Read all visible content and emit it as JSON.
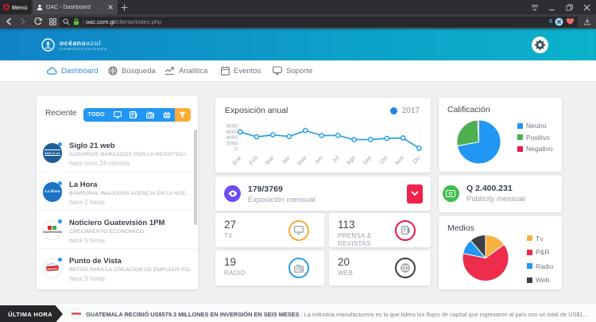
{
  "browser": {
    "menu_label": "Menú",
    "tab_title": "OAC - Dashboard",
    "new_tab": "+",
    "url_domain": "oac.com.gt",
    "url_path": "/cliente/index.php",
    "adblock_count": "0"
  },
  "header": {
    "brand_primary": "océano",
    "brand_secondary": "azul",
    "brand_sub": "COMUNICACIONES"
  },
  "nav": {
    "items": [
      {
        "label": "Dashboard",
        "active": true
      },
      {
        "label": "Búsqueda",
        "active": false
      },
      {
        "label": "Analítica",
        "active": false
      },
      {
        "label": "Eventos",
        "active": false
      },
      {
        "label": "Soporte",
        "active": false
      }
    ]
  },
  "recent": {
    "title": "Reciente",
    "filter_all_label": "TODO",
    "items": [
      {
        "source": "Siglo 21 web",
        "headline": "AUGURIOS MARCADOS POR LA INCERTIDU..",
        "time": "hace unos 24 minutos",
        "logo": "siglo21"
      },
      {
        "source": "La Hora",
        "headline": "BANRURAL INAUGURA AGENCIA EN LA NUE..",
        "time": "hace 2 horas",
        "logo": "lahora"
      },
      {
        "source": "Noticiero Guatevisión 1PM",
        "headline": "CRECIMIENTO ECONÓMICO.",
        "time": "hace 5 horas",
        "logo": "guatevision"
      },
      {
        "source": "Punto de Vista",
        "headline": "RETOS PARA LA CREACIÓN DE EMPLEOS FO..",
        "time": "hace 9 horas",
        "logo": "puntodevista"
      }
    ]
  },
  "exposure": {
    "value": "179/3769",
    "label": "Exposición mensual"
  },
  "stats": [
    {
      "value": "27",
      "label": "TV",
      "ring_color": "#f5a93b",
      "icon": "tv"
    },
    {
      "value": "113",
      "label": "PRENSA & REVISTAS",
      "ring_color": "#e5194e",
      "icon": "press"
    },
    {
      "value": "19",
      "label": "RADIO",
      "ring_color": "#2e9ce4",
      "icon": "radio"
    },
    {
      "value": "20",
      "label": "WEB",
      "ring_color": "#3a4147",
      "icon": "web"
    }
  ],
  "publicity": {
    "value": "Q 2.400.231",
    "label": "Publicity mensual"
  },
  "ticker": {
    "label": "ÚLTIMA HORA",
    "headline": "GUATEMALA RECIBIÓ US$579.3 MILLONES EN INVERSIÓN EN SEIS MESES",
    "separator": " : ",
    "body": "La industria manufacturera es la que lidera los flujos de capital que ingresaron al país con un total de US$1..."
  },
  "chart_data": [
    {
      "type": "line",
      "title": "Exposición anual",
      "legend": [
        "2017"
      ],
      "legend_position": "top-right",
      "categories": [
        "Ene",
        "Feb",
        "Mar",
        "Abr",
        "May",
        "Jun",
        "Jul",
        "Ago",
        "Sep",
        "Oct",
        "Nov",
        "Dic"
      ],
      "series": [
        {
          "name": "2017",
          "values": [
            5900,
            4200,
            4900,
            4300,
            6400,
            4650,
            4700,
            3200,
            3250,
            3650,
            3800,
            200
          ],
          "color": "#2e9fe0"
        }
      ],
      "ylim": [
        0,
        8000
      ],
      "yticks": [
        0,
        2000,
        4000,
        6000,
        8000
      ],
      "grid": true
    },
    {
      "type": "pie",
      "title": "Calificación",
      "labels": [
        "Neutro",
        "Positivo",
        "Negativo"
      ],
      "values": [
        72,
        27,
        1
      ],
      "colors": [
        "#2196f3",
        "#4caf50",
        "#e9194b"
      ],
      "legend_position": "right"
    },
    {
      "type": "pie",
      "title": "Medios",
      "labels": [
        "Tv",
        "P&R",
        "Radio",
        "Web"
      ],
      "values": [
        27,
        113,
        19,
        20
      ],
      "colors": [
        "#f8b13e",
        "#ee2c4c",
        "#2196f3",
        "#3b4046"
      ],
      "legend_position": "right"
    }
  ]
}
